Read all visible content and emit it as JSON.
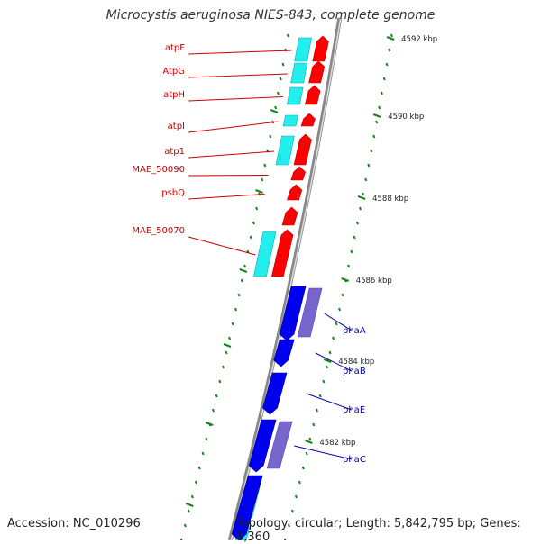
{
  "map": {
    "title": "Microcystis aeruginosa NIES-843, complete genome",
    "accession": "Accession: NC_010296",
    "topology": "Topology: circular; Length: 5,842,795 bp; Genes: 6,360"
  },
  "colors": {
    "forward_gene": "#ff0000",
    "forward_cds": "#22eeee",
    "reverse_gene": "#0000ee",
    "reverse_cds": "#7766cc",
    "label_red": "#cc0000",
    "label_blue": "#0000aa",
    "tick": "#118811",
    "backbone": "#888888"
  },
  "ticks": [
    "4592 kbp",
    "4590 kbp",
    "4588 kbp",
    "4586 kbp",
    "4584 kbp",
    "4582 kbp"
  ],
  "genes_forward": [
    "atpF",
    "AtpG",
    "atpH",
    "atpI",
    "atp1",
    "MAE_50090",
    "psbQ",
    "MAE_50070"
  ],
  "genes_reverse": [
    "phaA",
    "phaB",
    "phaE",
    "phaC"
  ]
}
